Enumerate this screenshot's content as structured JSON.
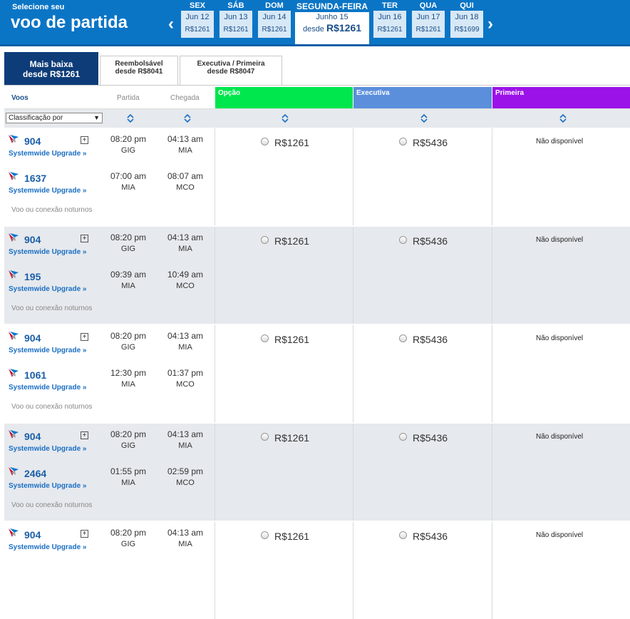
{
  "header": {
    "subtitle": "Selecione seu",
    "title": "voo de partida",
    "prev_arrow": "‹",
    "next_arrow": "›"
  },
  "days": [
    {
      "name": "SEX",
      "date": "Jun 12",
      "price": "R$1261"
    },
    {
      "name": "SÁB",
      "date": "Jun 13",
      "price": "R$1261"
    },
    {
      "name": "DOM",
      "date": "Jun 14",
      "price": "R$1261"
    },
    {
      "name": "SEGUNDA-FEIRA",
      "date": "Junho 15",
      "price_prefix": "desde",
      "price": "R$1261",
      "selected": true
    },
    {
      "name": "TER",
      "date": "Jun 16",
      "price": "R$1261"
    },
    {
      "name": "QUA",
      "date": "Jun 17",
      "price": "R$1261"
    },
    {
      "name": "QUI",
      "date": "Jun 18",
      "price": "R$1699"
    }
  ],
  "tabs": [
    {
      "line1": "Mais baixa",
      "line2": "desde R$1261",
      "active": true
    },
    {
      "line1": "Reembolsável",
      "line2": "desde R$8041"
    },
    {
      "line1": "Executiva / Primeira",
      "line2": "desde R$8047"
    }
  ],
  "columns": {
    "voos": "Voos",
    "partida": "Partida",
    "chegada": "Chegada",
    "cabins": [
      {
        "label": "Opção",
        "color": "#00e64d"
      },
      {
        "label": "Executiva",
        "color": "#5b8fdc"
      },
      {
        "label": "Primeira",
        "color": "#9b12e8"
      }
    ],
    "sort_select": "Classificação por"
  },
  "common": {
    "upgrade": "Systemwide Upgrade »",
    "night": "Voo ou conexão noturnos",
    "na": "Não disponível",
    "price_opcao": "R$1261",
    "price_exec": "R$5436",
    "plus": "+"
  },
  "groups": [
    {
      "legs": [
        {
          "flight": "904",
          "dep": "08:20 pm",
          "dep_ap": "GIG",
          "arr": "04:13 am",
          "arr_ap": "MIA"
        },
        {
          "flight": "1637",
          "dep": "07:00 am",
          "dep_ap": "MIA",
          "arr": "08:07 am",
          "arr_ap": "MCO"
        }
      ]
    },
    {
      "legs": [
        {
          "flight": "904",
          "dep": "08:20 pm",
          "dep_ap": "GIG",
          "arr": "04:13 am",
          "arr_ap": "MIA"
        },
        {
          "flight": "195",
          "dep": "09:39 am",
          "dep_ap": "MIA",
          "arr": "10:49 am",
          "arr_ap": "MCO"
        }
      ]
    },
    {
      "legs": [
        {
          "flight": "904",
          "dep": "08:20 pm",
          "dep_ap": "GIG",
          "arr": "04:13 am",
          "arr_ap": "MIA"
        },
        {
          "flight": "1061",
          "dep": "12:30 pm",
          "dep_ap": "MIA",
          "arr": "01:37 pm",
          "arr_ap": "MCO"
        }
      ]
    },
    {
      "legs": [
        {
          "flight": "904",
          "dep": "08:20 pm",
          "dep_ap": "GIG",
          "arr": "04:13 am",
          "arr_ap": "MIA"
        },
        {
          "flight": "2464",
          "dep": "01:55 pm",
          "dep_ap": "MIA",
          "arr": "02:59 pm",
          "arr_ap": "MCO"
        }
      ]
    },
    {
      "legs": [
        {
          "flight": "904",
          "dep": "08:20 pm",
          "dep_ap": "GIG",
          "arr": "04:13 am",
          "arr_ap": "MIA"
        }
      ]
    }
  ]
}
